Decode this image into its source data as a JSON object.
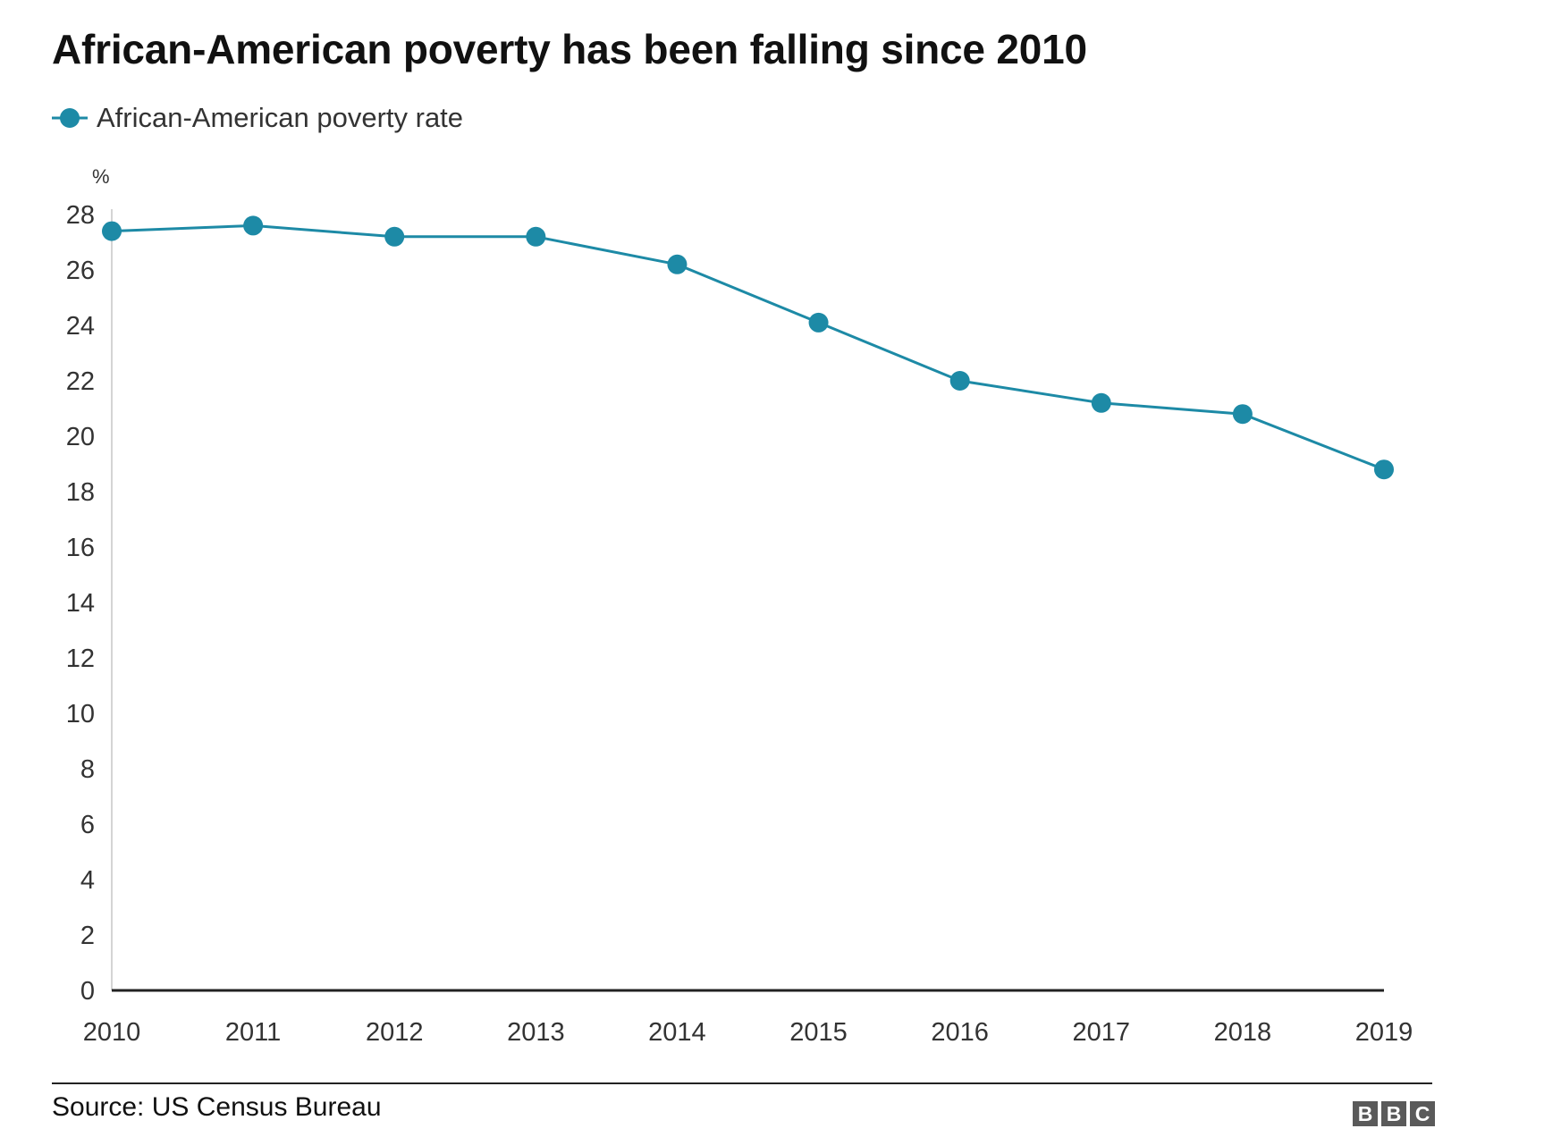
{
  "chart_data": {
    "type": "line",
    "title": "African-American poverty has been falling since 2010",
    "unit_label": "%",
    "xlabel": "",
    "ylabel": "%",
    "x": [
      2010,
      2011,
      2012,
      2013,
      2014,
      2015,
      2016,
      2017,
      2018,
      2019
    ],
    "series": [
      {
        "name": "African-American poverty rate",
        "values": [
          27.4,
          27.6,
          27.2,
          27.2,
          26.2,
          24.1,
          22.0,
          21.2,
          20.8,
          18.8
        ]
      }
    ],
    "ylim": [
      0,
      28
    ],
    "yticks": [
      0,
      2,
      4,
      6,
      8,
      10,
      12,
      14,
      16,
      18,
      20,
      22,
      24,
      26,
      28
    ],
    "xtick_labels": [
      "2010",
      "2011",
      "2012",
      "2013",
      "2014",
      "2015",
      "2016",
      "2017",
      "2018",
      "2019"
    ],
    "legend_position": "top-left",
    "grid": false,
    "line_color": "#1d8aa6",
    "axis_color": "#222222"
  },
  "footer": {
    "source": "Source: US Census Bureau",
    "logo_letters": [
      "B",
      "B",
      "C"
    ]
  }
}
